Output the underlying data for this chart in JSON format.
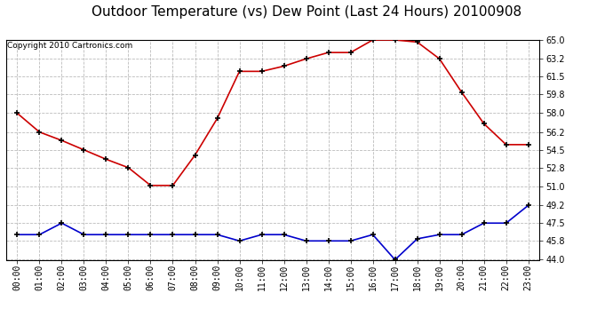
{
  "title": "Outdoor Temperature (vs) Dew Point (Last 24 Hours) 20100908",
  "copyright": "Copyright 2010 Cartronics.com",
  "x_labels": [
    "00:00",
    "01:00",
    "02:00",
    "03:00",
    "04:00",
    "05:00",
    "06:00",
    "07:00",
    "08:00",
    "09:00",
    "10:00",
    "11:00",
    "12:00",
    "13:00",
    "14:00",
    "15:00",
    "16:00",
    "17:00",
    "18:00",
    "19:00",
    "20:00",
    "21:00",
    "22:00",
    "23:00"
  ],
  "temp_data": [
    58.0,
    56.2,
    55.4,
    54.5,
    53.6,
    52.8,
    51.1,
    51.1,
    54.0,
    57.5,
    62.0,
    62.0,
    62.5,
    63.2,
    63.8,
    63.8,
    65.0,
    65.0,
    64.8,
    63.2,
    60.0,
    57.0,
    55.0,
    55.0
  ],
  "dew_data": [
    46.4,
    46.4,
    47.5,
    46.4,
    46.4,
    46.4,
    46.4,
    46.4,
    46.4,
    46.4,
    45.8,
    46.4,
    46.4,
    45.8,
    45.8,
    45.8,
    46.4,
    44.0,
    46.0,
    46.4,
    46.4,
    47.5,
    47.5,
    49.2
  ],
  "temp_color": "#cc0000",
  "dew_color": "#0000cc",
  "fig_bg_color": "#ffffff",
  "plot_bg_color": "#ffffff",
  "grid_color": "#bbbbbb",
  "y_min": 44.0,
  "y_max": 65.0,
  "y_ticks": [
    44.0,
    45.8,
    47.5,
    49.2,
    51.0,
    52.8,
    54.5,
    56.2,
    58.0,
    59.8,
    61.5,
    63.2,
    65.0
  ],
  "title_fontsize": 11,
  "copyright_fontsize": 6.5,
  "tick_fontsize": 7,
  "marker_color": "#000000"
}
